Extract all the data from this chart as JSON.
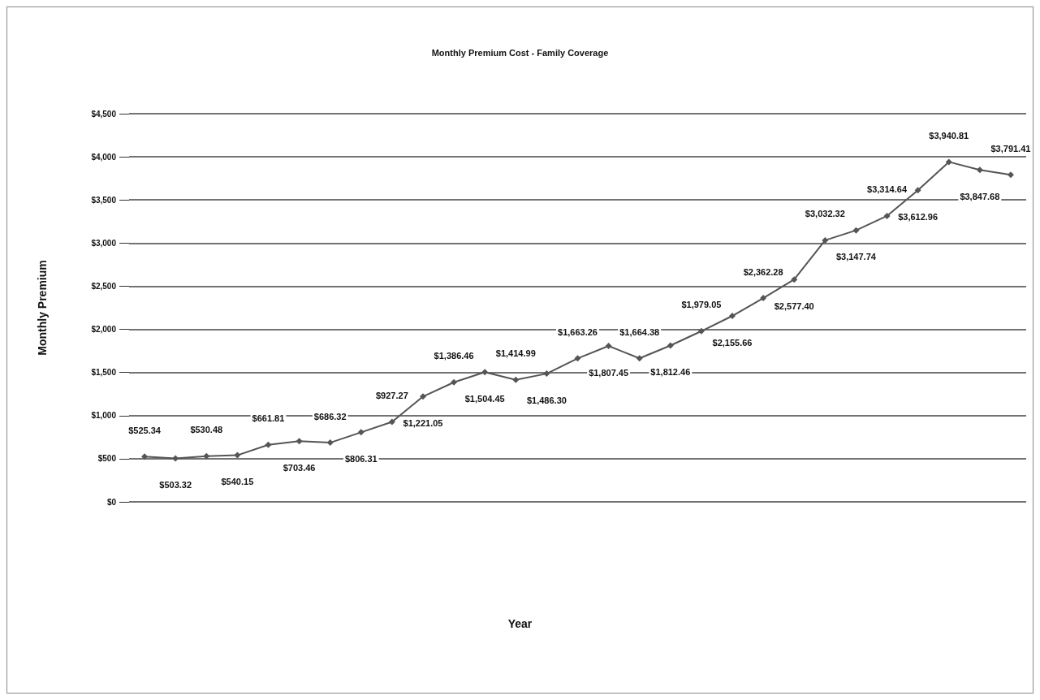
{
  "chart_data": {
    "type": "line",
    "title": "Monthly Premium Cost - Family Coverage",
    "annotations": [
      "Year"
    ],
    "ylabel": "Monthly Premium",
    "categories": [
      null,
      null,
      null,
      null,
      null,
      null,
      null,
      null,
      null,
      null,
      null,
      null,
      null,
      null,
      null,
      null,
      null,
      null,
      null,
      null,
      null,
      null,
      null,
      null,
      null,
      null,
      null,
      null,
      null
    ],
    "series": [
      {
        "color": "#555555",
        "values": [
          525.34,
          503.32,
          530.48,
          540.15,
          661.81,
          703.46,
          686.32,
          806.31,
          927.27,
          1221.05,
          1386.46,
          1504.45,
          1414.99,
          1486.3,
          1663.26,
          1807.45,
          1664.38,
          1812.46,
          1979.05,
          2155.66,
          2362.28,
          2577.4,
          3032.32,
          3147.74,
          3314.64,
          3612.96,
          3940.81,
          3847.68,
          3791.41
        ],
        "value_labels": [
          "$525.34",
          "$503.32",
          "$530.48",
          "$540.15",
          "$661.81",
          "$703.46",
          "$686.32",
          "$806.31",
          "$927.27",
          "$1,221.05",
          "$1,386.46",
          "$1,504.45",
          "$1,414.99",
          "$1,486.30",
          "$1,663.26",
          "$1,807.45",
          "$1,664.38",
          "$1,812.46",
          "$1,979.05",
          "$2,155.66",
          "$2,362.28",
          "$2,577.40",
          "$3,032.32",
          "$3,147.74",
          "$3,314.64",
          "$3,612.96",
          "$3,940.81",
          "$3,847.68",
          "$3,791.41"
        ]
      }
    ],
    "ylim": [
      0,
      4500
    ],
    "yticks": [
      {
        "value": 0,
        "label": "$0"
      },
      {
        "value": 500,
        "label": "$500"
      },
      {
        "value": 1000,
        "label": "$1,000"
      },
      {
        "value": 1500,
        "label": "$1,500"
      },
      {
        "value": 2000,
        "label": "$2,000"
      },
      {
        "value": 2500,
        "label": "$2,500"
      },
      {
        "value": 3000,
        "label": "$3,000"
      },
      {
        "value": 3500,
        "label": "$3,500"
      },
      {
        "value": 4000,
        "label": "$4,000"
      },
      {
        "value": 4500,
        "label": "$4,500"
      }
    ],
    "grid": "y",
    "marker": "diamond",
    "line_style": "solid"
  }
}
